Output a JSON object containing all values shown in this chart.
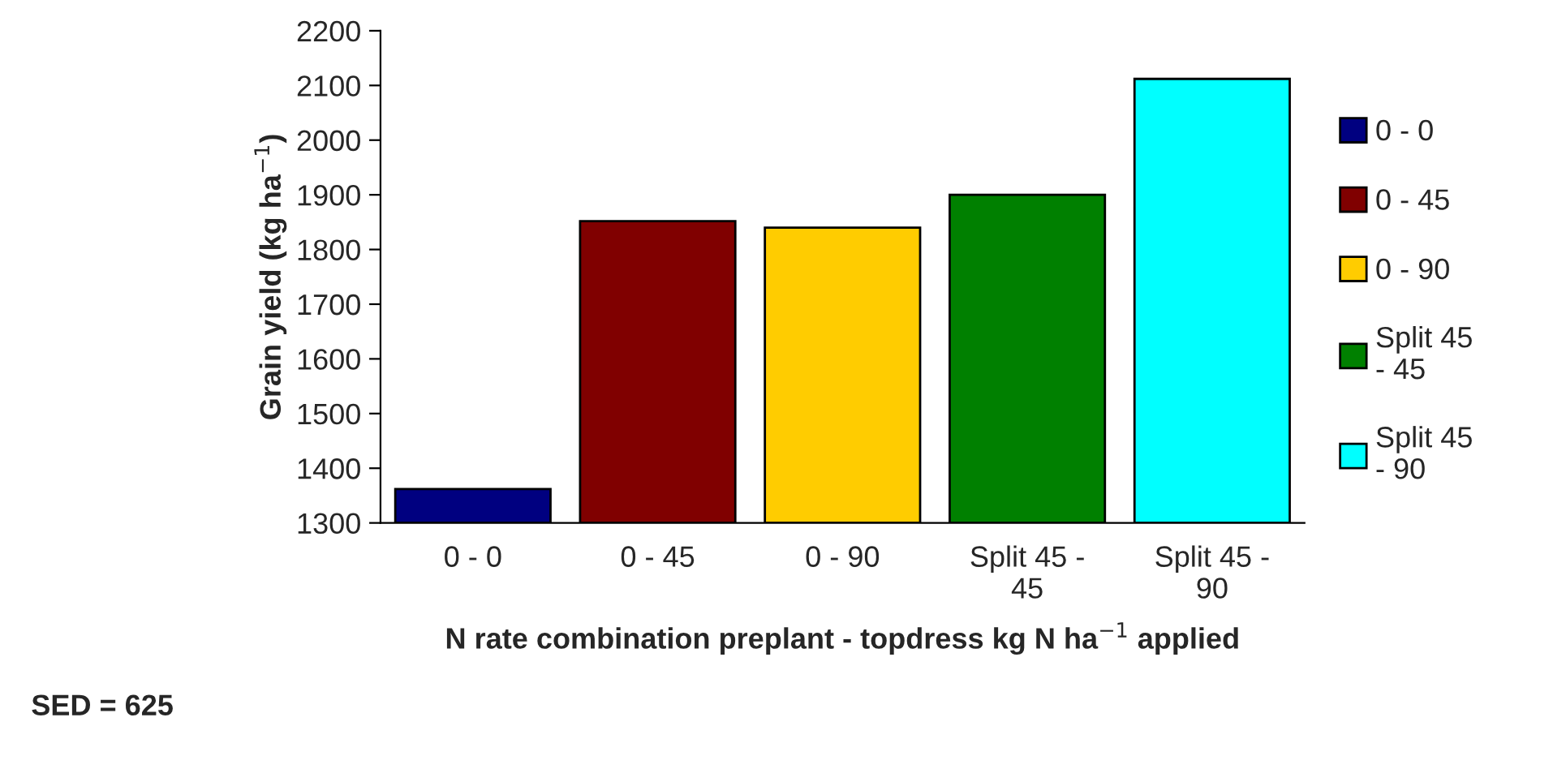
{
  "chart_data": {
    "type": "bar",
    "xlabel": "N rate combination preplant - topdress kg N ha$^{−1}$ applied",
    "ylabel": "Grain yield (kg ha$^{−1}$)",
    "categories": [
      "0 - 0",
      "0 - 45",
      "0 - 90",
      "Split 45 - 45",
      "Split 45 - 90"
    ],
    "series": [
      {
        "name": "0 - 0",
        "color": "#000080",
        "values": [
          1362,
          null,
          null,
          null,
          null
        ]
      },
      {
        "name": "0 - 45",
        "color": "#800000",
        "values": [
          null,
          1852,
          null,
          null,
          null
        ]
      },
      {
        "name": "0 - 90",
        "color": "#ffcc00",
        "values": [
          null,
          null,
          1840,
          null,
          null
        ]
      },
      {
        "name": "Split 45 - 45",
        "color": "#008000",
        "values": [
          null,
          null,
          null,
          1900,
          null
        ]
      },
      {
        "name": "Split 45 - 90",
        "color": "#00ffff",
        "values": [
          null,
          null,
          null,
          null,
          2112
        ]
      }
    ],
    "ylim": [
      1300,
      2200
    ],
    "yticks": [
      1300,
      1400,
      1500,
      1600,
      1700,
      1800,
      1900,
      2000,
      2100,
      2200
    ],
    "grid": false,
    "legend": "right",
    "annotations": [
      "SED = 625"
    ]
  }
}
